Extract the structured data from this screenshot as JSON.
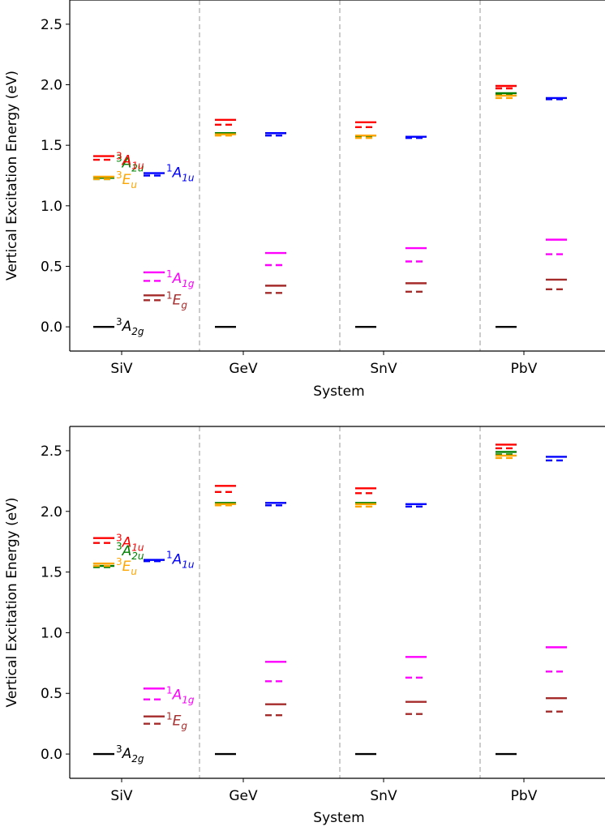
{
  "chart_data": [
    {
      "type": "line",
      "xlabel": "System",
      "ylabel": "Vertical Excitation Energy (eV)",
      "categories": [
        "SiV",
        "GeV",
        "SnV",
        "PbV"
      ],
      "ylim": [
        -0.2,
        2.7
      ],
      "yticks": [
        "0.0",
        "0.5",
        "1.0",
        "1.5",
        "2.0",
        "2.5"
      ],
      "grid": false,
      "states": [
        {
          "name": "3A2g",
          "label": [
            "3",
            "A",
            "2g"
          ],
          "color": "#000000",
          "column": "left",
          "label_system": "SiV",
          "solid": [
            0.0,
            0.0,
            0.0,
            0.0
          ],
          "dashed": [
            null,
            null,
            null,
            null
          ]
        },
        {
          "name": "3A2u",
          "label": [
            "3",
            "A",
            "2u"
          ],
          "color": "#008000",
          "column": "left",
          "label_system": "SiV",
          "solid": [
            1.23,
            1.6,
            1.58,
            1.93
          ],
          "dashed": [
            1.22,
            1.59,
            1.57,
            1.92
          ]
        },
        {
          "name": "3Eu",
          "label": [
            "3",
            "E",
            "u"
          ],
          "color": "#FFA500",
          "column": "left",
          "label_system": "SiV",
          "solid": [
            1.24,
            1.59,
            1.58,
            1.91
          ],
          "dashed": [
            1.22,
            1.58,
            1.56,
            1.89
          ]
        },
        {
          "name": "3A1u",
          "label": [
            "3",
            "A",
            "1u"
          ],
          "color": "#FF0000",
          "column": "left",
          "label_system": "SiV",
          "solid": [
            1.41,
            1.71,
            1.69,
            1.99
          ],
          "dashed": [
            1.38,
            1.67,
            1.65,
            1.97
          ]
        },
        {
          "name": "1A1u",
          "label": [
            "1",
            "A",
            "1u"
          ],
          "color": "#0000FF",
          "column": "right",
          "label_system": "SiV",
          "solid": [
            1.27,
            1.6,
            1.57,
            1.89
          ],
          "dashed": [
            1.25,
            1.58,
            1.56,
            1.88
          ]
        },
        {
          "name": "1Eg",
          "label": [
            "1",
            "E",
            "g"
          ],
          "color": "#A52A2A",
          "column": "right",
          "label_system": "SiV",
          "solid": [
            0.26,
            0.34,
            0.36,
            0.39
          ],
          "dashed": [
            0.22,
            0.28,
            0.29,
            0.31
          ]
        },
        {
          "name": "1A1g",
          "label": [
            "1",
            "A",
            "1g"
          ],
          "color": "#FF00FF",
          "column": "right",
          "label_system": "SiV",
          "solid": [
            0.45,
            0.61,
            0.65,
            0.72
          ],
          "dashed": [
            0.38,
            0.51,
            0.54,
            0.6
          ]
        }
      ]
    },
    {
      "type": "line",
      "xlabel": "System",
      "ylabel": "Vertical Excitation Energy (eV)",
      "categories": [
        "SiV",
        "GeV",
        "SnV",
        "PbV"
      ],
      "ylim": [
        -0.2,
        2.7
      ],
      "yticks": [
        "0.0",
        "0.5",
        "1.0",
        "1.5",
        "2.0",
        "2.5"
      ],
      "grid": false,
      "states": [
        {
          "name": "3A2g",
          "label": [
            "3",
            "A",
            "2g"
          ],
          "color": "#000000",
          "column": "left",
          "label_system": "SiV",
          "solid": [
            0.0,
            0.0,
            0.0,
            0.0
          ],
          "dashed": [
            null,
            null,
            null,
            null
          ]
        },
        {
          "name": "3A2u",
          "label": [
            "3",
            "A",
            "2u"
          ],
          "color": "#008000",
          "column": "left",
          "label_system": "SiV",
          "solid": [
            1.55,
            2.07,
            2.07,
            2.49
          ],
          "dashed": [
            1.54,
            2.06,
            2.06,
            2.47
          ]
        },
        {
          "name": "3Eu",
          "label": [
            "3",
            "E",
            "u"
          ],
          "color": "#FFA500",
          "column": "left",
          "label_system": "SiV",
          "solid": [
            1.57,
            2.06,
            2.06,
            2.46
          ],
          "dashed": [
            1.55,
            2.05,
            2.04,
            2.44
          ]
        },
        {
          "name": "3A1u",
          "label": [
            "3",
            "A",
            "1u"
          ],
          "color": "#FF0000",
          "column": "left",
          "label_system": "SiV",
          "solid": [
            1.78,
            2.21,
            2.19,
            2.55
          ],
          "dashed": [
            1.74,
            2.16,
            2.15,
            2.52
          ]
        },
        {
          "name": "1A1u",
          "label": [
            "1",
            "A",
            "1u"
          ],
          "color": "#0000FF",
          "column": "right",
          "label_system": "SiV",
          "solid": [
            1.6,
            2.07,
            2.06,
            2.45
          ],
          "dashed": [
            1.59,
            2.05,
            2.04,
            2.42
          ]
        },
        {
          "name": "1Eg",
          "label": [
            "1",
            "E",
            "g"
          ],
          "color": "#A52A2A",
          "column": "right",
          "label_system": "SiV",
          "solid": [
            0.31,
            0.41,
            0.43,
            0.46
          ],
          "dashed": [
            0.25,
            0.32,
            0.33,
            0.35
          ]
        },
        {
          "name": "1A1g",
          "label": [
            "1",
            "A",
            "1g"
          ],
          "color": "#FF00FF",
          "column": "right",
          "label_system": "SiV",
          "solid": [
            0.54,
            0.76,
            0.8,
            0.88
          ],
          "dashed": [
            0.45,
            0.6,
            0.63,
            0.68
          ]
        }
      ]
    }
  ]
}
